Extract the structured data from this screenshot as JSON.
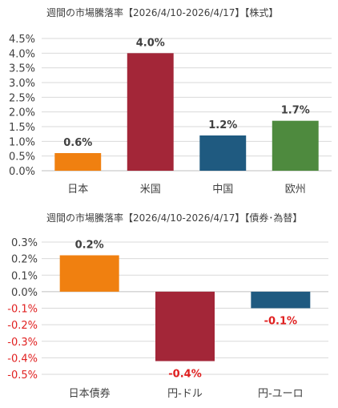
{
  "colors": {
    "japan": "#f08010",
    "us": "#a32638",
    "china": "#1f5a80",
    "europe": "#4e8a3e",
    "negative_label": "#e02020"
  },
  "chart_data": [
    {
      "type": "bar",
      "title": "週間の市場騰落率【2026/4/10-2026/4/17】【株式】",
      "categories": [
        "日本",
        "米国",
        "中国",
        "欧州"
      ],
      "values": [
        0.6,
        4.0,
        1.2,
        1.7
      ],
      "data_labels": [
        "0.6%",
        "4.0%",
        "1.2%",
        "1.7%"
      ],
      "bar_colors": [
        "#f08010",
        "#a32638",
        "#1f5a80",
        "#4e8a3e"
      ],
      "ylim": [
        0,
        4.5
      ],
      "yticks": [
        4.5,
        4.0,
        3.5,
        3.0,
        2.5,
        2.0,
        1.5,
        1.0,
        0.5,
        0.0
      ],
      "ytick_labels": [
        "4.5%",
        "4.0%",
        "3.5%",
        "3.0%",
        "2.5%",
        "2.0%",
        "1.5%",
        "1.0%",
        "0.5%",
        "0.0%"
      ],
      "grid": true
    },
    {
      "type": "bar",
      "title": "週間の市場騰落率【2026/4/10-2026/4/17】【債券･為替】",
      "categories": [
        "日本債券",
        "円-ドル",
        "円-ユーロ"
      ],
      "values": [
        0.22,
        -0.42,
        -0.1
      ],
      "data_labels": [
        "0.2%",
        "-0.4%",
        "-0.1%"
      ],
      "bar_colors": [
        "#f08010",
        "#a32638",
        "#1f5a80"
      ],
      "ylim": [
        -0.5,
        0.3
      ],
      "yticks": [
        0.3,
        0.2,
        0.1,
        0.0,
        -0.1,
        -0.2,
        -0.3,
        -0.4,
        -0.5
      ],
      "ytick_labels": [
        "0.3%",
        "0.2%",
        "0.1%",
        "0.0%",
        "-0.1%",
        "-0.2%",
        "-0.3%",
        "-0.4%",
        "-0.5%"
      ],
      "grid": true
    }
  ]
}
